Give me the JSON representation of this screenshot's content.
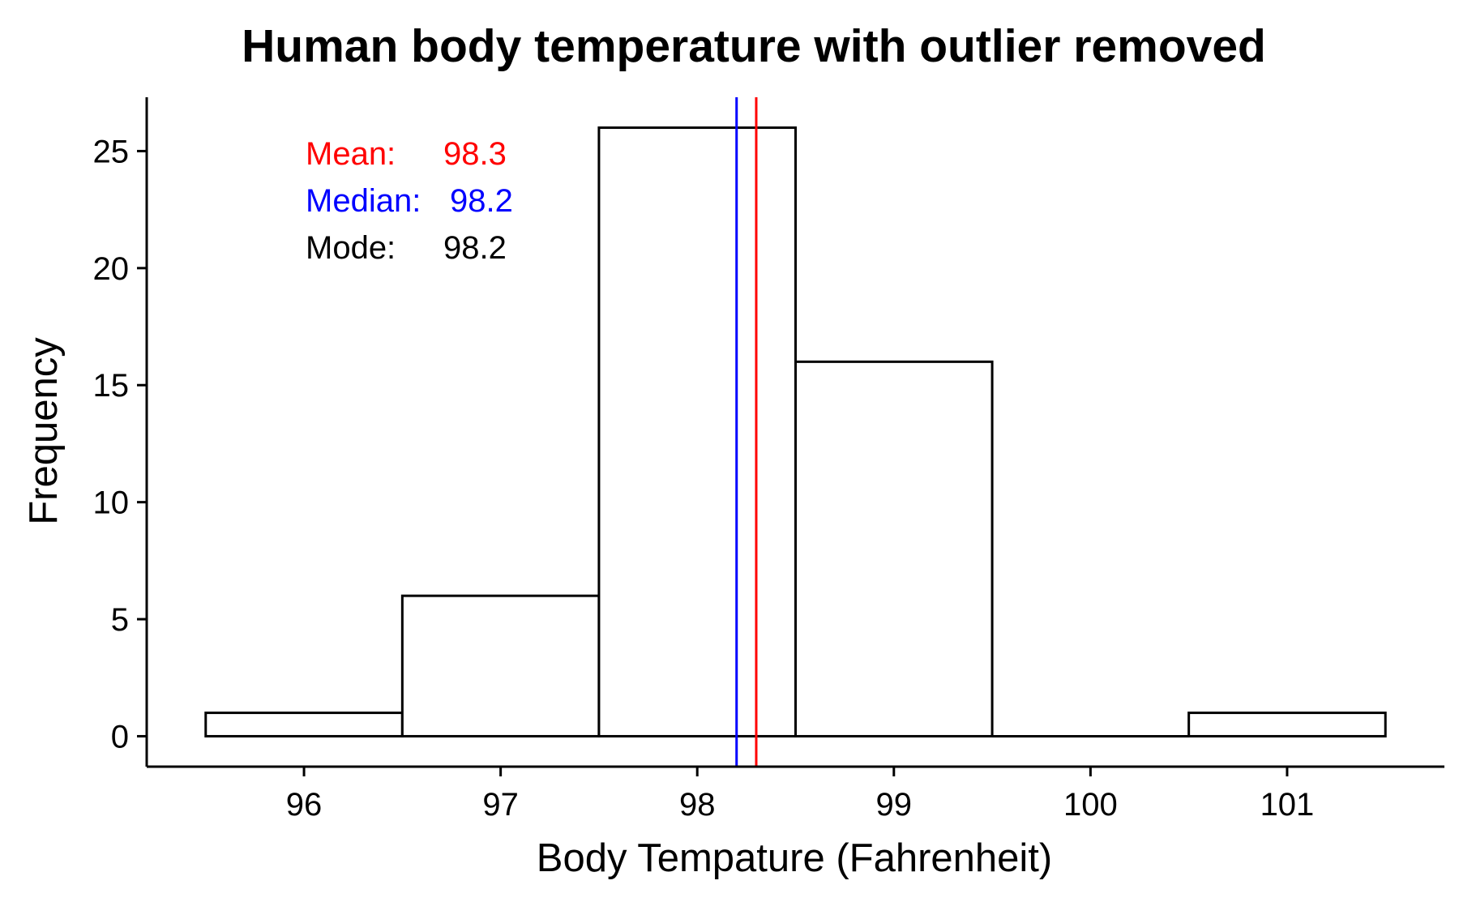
{
  "chart_data": {
    "type": "bar",
    "title": "Human body temperature with outlier removed",
    "xlabel": "Body Tempature (Fahrenheit)",
    "ylabel": "Frequency",
    "xlim": [
      95.2,
      101.8
    ],
    "ylim": [
      -1.3,
      27.3
    ],
    "x_ticks": [
      96,
      97,
      98,
      99,
      100,
      101
    ],
    "y_ticks": [
      0,
      5,
      10,
      15,
      20,
      25
    ],
    "bins": [
      {
        "x0": 95.5,
        "x1": 96.5,
        "count": 1
      },
      {
        "x0": 96.5,
        "x1": 97.5,
        "count": 6
      },
      {
        "x0": 97.5,
        "x1": 98.5,
        "count": 26
      },
      {
        "x0": 98.5,
        "x1": 99.5,
        "count": 16
      },
      {
        "x0": 99.5,
        "x1": 100.5,
        "count": 0
      },
      {
        "x0": 100.5,
        "x1": 101.5,
        "count": 1
      }
    ],
    "vlines": [
      {
        "name": "Median",
        "x": 98.2,
        "color": "#0000ff"
      },
      {
        "name": "Mean",
        "x": 98.3,
        "color": "#ff0000"
      }
    ],
    "annotations": [
      {
        "label": "Mean:",
        "value": "98.3",
        "color": "#ff0000"
      },
      {
        "label": "Median:",
        "value": "98.2",
        "color": "#0000ff"
      },
      {
        "label": "Mode:",
        "value": "98.2",
        "color": "#000000"
      }
    ],
    "grid": false,
    "bar_fill": "#ffffff",
    "bar_edge": "#000000"
  }
}
